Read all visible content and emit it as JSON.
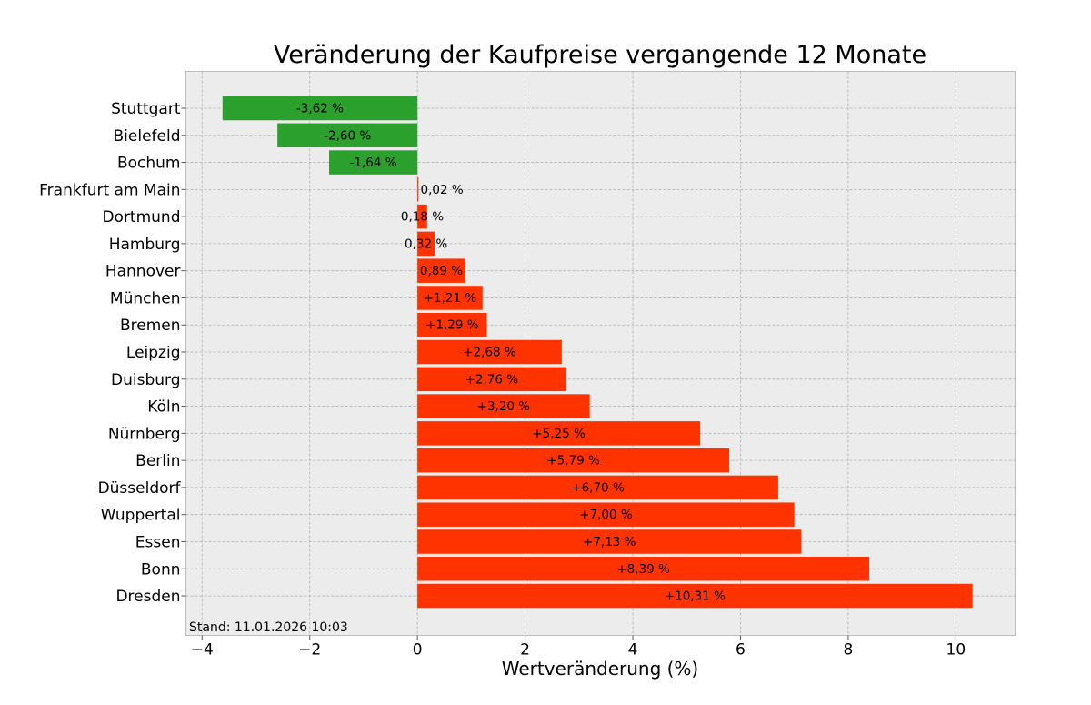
{
  "chart_data": {
    "type": "bar",
    "orientation": "horizontal",
    "title": "Veränderung der Kaufpreise vergangende 12 Monate",
    "xlabel": "Wertveränderung (%)",
    "ylabel": "",
    "xlim": [
      -4.3,
      11.1
    ],
    "xticks": [
      -4,
      -2,
      0,
      2,
      4,
      6,
      8,
      10
    ],
    "xtick_labels": [
      "−4",
      "−2",
      "0",
      "2",
      "4",
      "6",
      "8",
      "10"
    ],
    "grid": true,
    "categories": [
      "Stuttgart",
      "Bielefeld",
      "Bochum",
      "Frankfurt am Main",
      "Dortmund",
      "Hamburg",
      "Hannover",
      "München",
      "Bremen",
      "Leipzig",
      "Duisburg",
      "Köln",
      "Nürnberg",
      "Berlin",
      "Düsseldorf",
      "Wuppertal",
      "Essen",
      "Bonn",
      "Dresden"
    ],
    "values": [
      -3.62,
      -2.6,
      -1.64,
      0.02,
      0.18,
      0.32,
      0.89,
      1.21,
      1.29,
      2.68,
      2.76,
      3.2,
      5.25,
      5.79,
      6.7,
      7.0,
      7.13,
      8.39,
      10.31
    ],
    "data_labels": [
      "-3,62 %",
      "-2,60 %",
      "-1,64 %",
      "0,02 %",
      "0,18 %",
      "0,32 %",
      "0,89 %",
      "+1,21 %",
      "+1,29 %",
      "+2,68 %",
      "+2,76 %",
      "+3,20 %",
      "+5,25 %",
      "+5,79 %",
      "+6,70 %",
      "+7,00 %",
      "+7,13 %",
      "+8,39 %",
      "+10,31 %"
    ],
    "colors": {
      "negative": "#2ca02c",
      "positive": "#ff3300",
      "plot_background": "#ececec",
      "grid": "#b0b0b0",
      "frame": "#bcbcbc"
    }
  },
  "annotation": {
    "timestamp": "Stand: 11.01.2026 10:03"
  }
}
